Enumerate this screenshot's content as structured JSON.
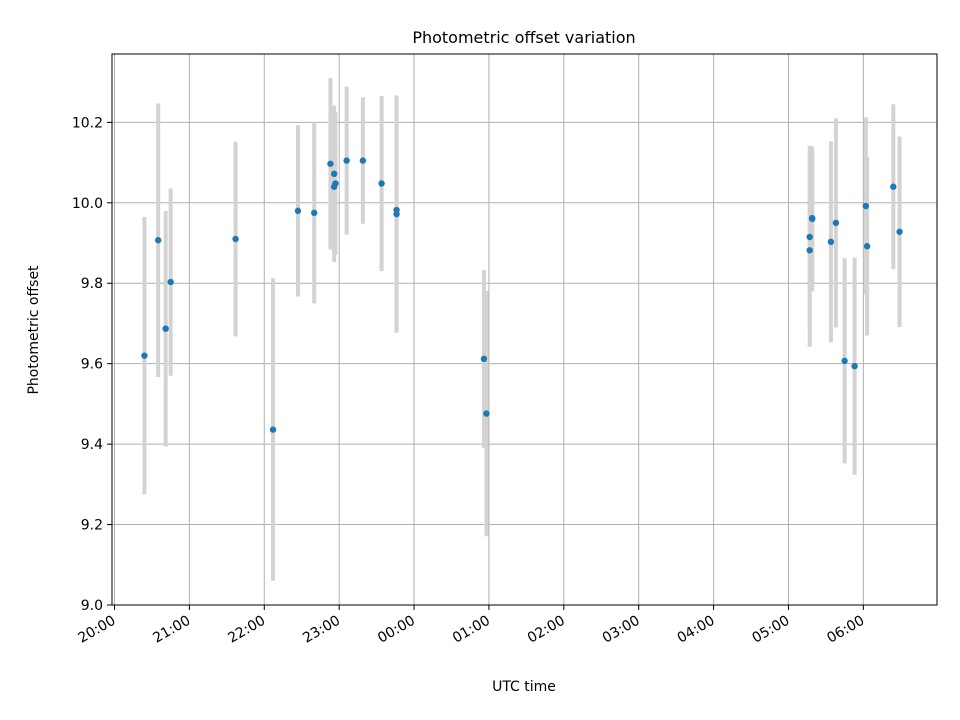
{
  "chart_data": {
    "type": "scatter",
    "title": "Photometric offset variation",
    "xlabel": "UTC time",
    "ylabel": "Photometric offset",
    "xlim": [
      "2023-01-01T19:58",
      "2023-01-02T06:59"
    ],
    "ylim": [
      9.0,
      10.37
    ],
    "x_ticks": [
      {
        "t": "2023-01-01T20:00",
        "label": "20:00"
      },
      {
        "t": "2023-01-01T21:00",
        "label": "21:00"
      },
      {
        "t": "2023-01-01T22:00",
        "label": "22:00"
      },
      {
        "t": "2023-01-01T23:00",
        "label": "23:00"
      },
      {
        "t": "2023-01-02T00:00",
        "label": "00:00"
      },
      {
        "t": "2023-01-02T01:00",
        "label": "01:00"
      },
      {
        "t": "2023-01-02T02:00",
        "label": "02:00"
      },
      {
        "t": "2023-01-02T03:00",
        "label": "03:00"
      },
      {
        "t": "2023-01-02T04:00",
        "label": "04:00"
      },
      {
        "t": "2023-01-02T05:00",
        "label": "05:00"
      },
      {
        "t": "2023-01-02T06:00",
        "label": "06:00"
      }
    ],
    "y_ticks": [
      9.0,
      9.2,
      9.4,
      9.6,
      9.8,
      10.0,
      10.2
    ],
    "grid": true,
    "point_color": "#1f77b4",
    "errorbar_color": "#d3d3d3",
    "points": [
      {
        "t": "2023-01-01T20:24",
        "y": 9.62,
        "err": 0.345
      },
      {
        "t": "2023-01-01T20:35",
        "y": 9.907,
        "err": 0.34
      },
      {
        "t": "2023-01-01T20:41",
        "y": 9.687,
        "err": 0.293
      },
      {
        "t": "2023-01-01T20:45",
        "y": 9.803,
        "err": 0.233
      },
      {
        "t": "2023-01-01T21:37",
        "y": 9.91,
        "err": 0.242
      },
      {
        "t": "2023-01-01T22:07",
        "y": 9.436,
        "err": 0.376
      },
      {
        "t": "2023-01-01T22:27",
        "y": 9.98,
        "err": 0.213
      },
      {
        "t": "2023-01-01T22:40",
        "y": 9.975,
        "err": 0.225
      },
      {
        "t": "2023-01-01T22:53",
        "y": 10.097,
        "err": 0.213
      },
      {
        "t": "2023-01-01T22:56",
        "y": 10.072,
        "err": 0.17
      },
      {
        "t": "2023-01-01T22:57",
        "y": 10.048,
        "err": 0.178
      },
      {
        "t": "2023-01-01T22:56",
        "y": 10.04,
        "err": 0.187
      },
      {
        "t": "2023-01-01T23:06",
        "y": 10.105,
        "err": 0.184
      },
      {
        "t": "2023-01-01T23:19",
        "y": 10.105,
        "err": 0.157
      },
      {
        "t": "2023-01-01T23:34",
        "y": 10.048,
        "err": 0.218
      },
      {
        "t": "2023-01-01T23:46",
        "y": 9.982,
        "err": 0.28
      },
      {
        "t": "2023-01-01T23:46",
        "y": 9.972,
        "err": 0.295
      },
      {
        "t": "2023-01-02T00:56",
        "y": 9.612,
        "err": 0.221
      },
      {
        "t": "2023-01-02T00:58",
        "y": 9.476,
        "err": 0.305
      },
      {
        "t": "2023-01-02T05:17",
        "y": 9.915,
        "err": 0.227
      },
      {
        "t": "2023-01-02T05:17",
        "y": 9.882,
        "err": 0.24
      },
      {
        "t": "2023-01-02T05:19",
        "y": 9.96,
        "err": 0.18
      },
      {
        "t": "2023-01-02T05:19",
        "y": 9.962,
        "err": 0.168
      },
      {
        "t": "2023-01-02T05:34",
        "y": 9.903,
        "err": 0.25
      },
      {
        "t": "2023-01-02T05:38",
        "y": 9.95,
        "err": 0.26
      },
      {
        "t": "2023-01-02T05:45",
        "y": 9.607,
        "err": 0.255
      },
      {
        "t": "2023-01-02T05:53",
        "y": 9.594,
        "err": 0.27
      },
      {
        "t": "2023-01-02T06:02",
        "y": 9.992,
        "err": 0.22
      },
      {
        "t": "2023-01-02T06:03",
        "y": 9.892,
        "err": 0.222
      },
      {
        "t": "2023-01-02T06:24",
        "y": 10.04,
        "err": 0.205
      },
      {
        "t": "2023-01-02T06:29",
        "y": 9.928,
        "err": 0.237
      }
    ]
  }
}
